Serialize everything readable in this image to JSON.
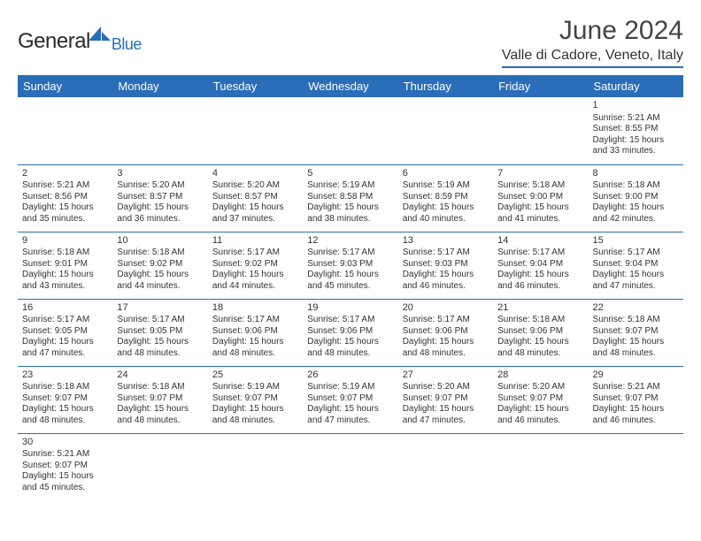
{
  "logo": {
    "text1": "General",
    "text2": "Blue"
  },
  "title": "June 2024",
  "location": "Valle di Cadore, Veneto, Italy",
  "colors": {
    "brand": "#2a6db8",
    "text": "#333333",
    "bg": "#ffffff"
  },
  "weekdays": [
    "Sunday",
    "Monday",
    "Tuesday",
    "Wednesday",
    "Thursday",
    "Friday",
    "Saturday"
  ],
  "weeks": [
    [
      null,
      null,
      null,
      null,
      null,
      null,
      {
        "n": "1",
        "sr": "Sunrise: 5:21 AM",
        "ss": "Sunset: 8:55 PM",
        "d1": "Daylight: 15 hours",
        "d2": "and 33 minutes."
      }
    ],
    [
      {
        "n": "2",
        "sr": "Sunrise: 5:21 AM",
        "ss": "Sunset: 8:56 PM",
        "d1": "Daylight: 15 hours",
        "d2": "and 35 minutes."
      },
      {
        "n": "3",
        "sr": "Sunrise: 5:20 AM",
        "ss": "Sunset: 8:57 PM",
        "d1": "Daylight: 15 hours",
        "d2": "and 36 minutes."
      },
      {
        "n": "4",
        "sr": "Sunrise: 5:20 AM",
        "ss": "Sunset: 8:57 PM",
        "d1": "Daylight: 15 hours",
        "d2": "and 37 minutes."
      },
      {
        "n": "5",
        "sr": "Sunrise: 5:19 AM",
        "ss": "Sunset: 8:58 PM",
        "d1": "Daylight: 15 hours",
        "d2": "and 38 minutes."
      },
      {
        "n": "6",
        "sr": "Sunrise: 5:19 AM",
        "ss": "Sunset: 8:59 PM",
        "d1": "Daylight: 15 hours",
        "d2": "and 40 minutes."
      },
      {
        "n": "7",
        "sr": "Sunrise: 5:18 AM",
        "ss": "Sunset: 9:00 PM",
        "d1": "Daylight: 15 hours",
        "d2": "and 41 minutes."
      },
      {
        "n": "8",
        "sr": "Sunrise: 5:18 AM",
        "ss": "Sunset: 9:00 PM",
        "d1": "Daylight: 15 hours",
        "d2": "and 42 minutes."
      }
    ],
    [
      {
        "n": "9",
        "sr": "Sunrise: 5:18 AM",
        "ss": "Sunset: 9:01 PM",
        "d1": "Daylight: 15 hours",
        "d2": "and 43 minutes."
      },
      {
        "n": "10",
        "sr": "Sunrise: 5:18 AM",
        "ss": "Sunset: 9:02 PM",
        "d1": "Daylight: 15 hours",
        "d2": "and 44 minutes."
      },
      {
        "n": "11",
        "sr": "Sunrise: 5:17 AM",
        "ss": "Sunset: 9:02 PM",
        "d1": "Daylight: 15 hours",
        "d2": "and 44 minutes."
      },
      {
        "n": "12",
        "sr": "Sunrise: 5:17 AM",
        "ss": "Sunset: 9:03 PM",
        "d1": "Daylight: 15 hours",
        "d2": "and 45 minutes."
      },
      {
        "n": "13",
        "sr": "Sunrise: 5:17 AM",
        "ss": "Sunset: 9:03 PM",
        "d1": "Daylight: 15 hours",
        "d2": "and 46 minutes."
      },
      {
        "n": "14",
        "sr": "Sunrise: 5:17 AM",
        "ss": "Sunset: 9:04 PM",
        "d1": "Daylight: 15 hours",
        "d2": "and 46 minutes."
      },
      {
        "n": "15",
        "sr": "Sunrise: 5:17 AM",
        "ss": "Sunset: 9:04 PM",
        "d1": "Daylight: 15 hours",
        "d2": "and 47 minutes."
      }
    ],
    [
      {
        "n": "16",
        "sr": "Sunrise: 5:17 AM",
        "ss": "Sunset: 9:05 PM",
        "d1": "Daylight: 15 hours",
        "d2": "and 47 minutes."
      },
      {
        "n": "17",
        "sr": "Sunrise: 5:17 AM",
        "ss": "Sunset: 9:05 PM",
        "d1": "Daylight: 15 hours",
        "d2": "and 48 minutes."
      },
      {
        "n": "18",
        "sr": "Sunrise: 5:17 AM",
        "ss": "Sunset: 9:06 PM",
        "d1": "Daylight: 15 hours",
        "d2": "and 48 minutes."
      },
      {
        "n": "19",
        "sr": "Sunrise: 5:17 AM",
        "ss": "Sunset: 9:06 PM",
        "d1": "Daylight: 15 hours",
        "d2": "and 48 minutes."
      },
      {
        "n": "20",
        "sr": "Sunrise: 5:17 AM",
        "ss": "Sunset: 9:06 PM",
        "d1": "Daylight: 15 hours",
        "d2": "and 48 minutes."
      },
      {
        "n": "21",
        "sr": "Sunrise: 5:18 AM",
        "ss": "Sunset: 9:06 PM",
        "d1": "Daylight: 15 hours",
        "d2": "and 48 minutes."
      },
      {
        "n": "22",
        "sr": "Sunrise: 5:18 AM",
        "ss": "Sunset: 9:07 PM",
        "d1": "Daylight: 15 hours",
        "d2": "and 48 minutes."
      }
    ],
    [
      {
        "n": "23",
        "sr": "Sunrise: 5:18 AM",
        "ss": "Sunset: 9:07 PM",
        "d1": "Daylight: 15 hours",
        "d2": "and 48 minutes."
      },
      {
        "n": "24",
        "sr": "Sunrise: 5:18 AM",
        "ss": "Sunset: 9:07 PM",
        "d1": "Daylight: 15 hours",
        "d2": "and 48 minutes."
      },
      {
        "n": "25",
        "sr": "Sunrise: 5:19 AM",
        "ss": "Sunset: 9:07 PM",
        "d1": "Daylight: 15 hours",
        "d2": "and 48 minutes."
      },
      {
        "n": "26",
        "sr": "Sunrise: 5:19 AM",
        "ss": "Sunset: 9:07 PM",
        "d1": "Daylight: 15 hours",
        "d2": "and 47 minutes."
      },
      {
        "n": "27",
        "sr": "Sunrise: 5:20 AM",
        "ss": "Sunset: 9:07 PM",
        "d1": "Daylight: 15 hours",
        "d2": "and 47 minutes."
      },
      {
        "n": "28",
        "sr": "Sunrise: 5:20 AM",
        "ss": "Sunset: 9:07 PM",
        "d1": "Daylight: 15 hours",
        "d2": "and 46 minutes."
      },
      {
        "n": "29",
        "sr": "Sunrise: 5:21 AM",
        "ss": "Sunset: 9:07 PM",
        "d1": "Daylight: 15 hours",
        "d2": "and 46 minutes."
      }
    ],
    [
      {
        "n": "30",
        "sr": "Sunrise: 5:21 AM",
        "ss": "Sunset: 9:07 PM",
        "d1": "Daylight: 15 hours",
        "d2": "and 45 minutes."
      },
      null,
      null,
      null,
      null,
      null,
      null
    ]
  ]
}
